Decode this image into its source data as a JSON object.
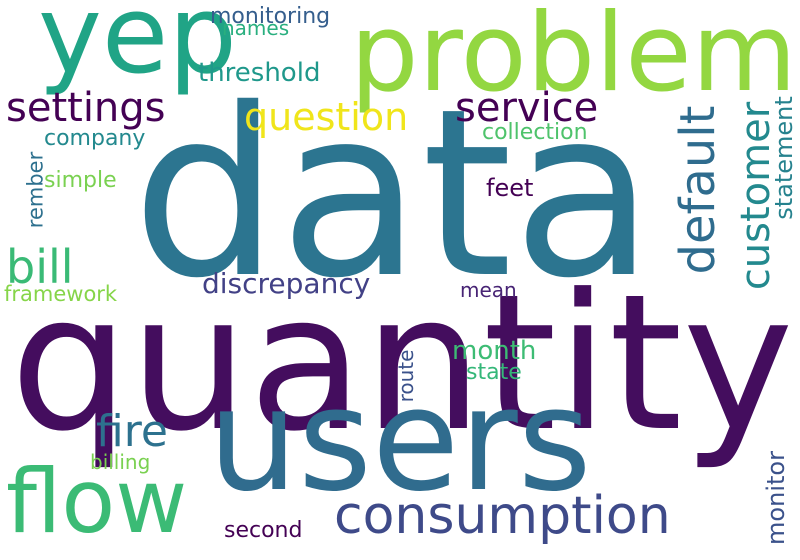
{
  "words": [
    {
      "id": "data",
      "text": "data",
      "color": "#2c7590"
    },
    {
      "id": "quantity",
      "text": "quantity",
      "color": "#440d5e"
    },
    {
      "id": "users",
      "text": "users",
      "color": "#306c8e"
    },
    {
      "id": "problem",
      "text": "problem",
      "color": "#93d741"
    },
    {
      "id": "yep",
      "text": "yep",
      "color": "#20a486"
    },
    {
      "id": "flow",
      "text": "flow",
      "color": "#3bbb75"
    },
    {
      "id": "consumption",
      "text": "consumption",
      "color": "#3e4a89"
    },
    {
      "id": "settings",
      "text": "settings",
      "color": "#440154"
    },
    {
      "id": "service",
      "text": "service",
      "color": "#440154"
    },
    {
      "id": "question",
      "text": "question",
      "color": "#f0e51b"
    },
    {
      "id": "default",
      "text": "default",
      "color": "#2f6c8e"
    },
    {
      "id": "customer",
      "text": "customer",
      "color": "#23898e"
    },
    {
      "id": "statement",
      "text": "statement",
      "color": "#26828e"
    },
    {
      "id": "bill",
      "text": "bill",
      "color": "#3aba76"
    },
    {
      "id": "fire",
      "text": "fire",
      "color": "#2d718e"
    },
    {
      "id": "discrepancy",
      "text": "discrepancy",
      "color": "#424186"
    },
    {
      "id": "threshold",
      "text": "threshold",
      "color": "#1f988b"
    },
    {
      "id": "monitoring",
      "text": "monitoring",
      "color": "#355e8d"
    },
    {
      "id": "names",
      "text": "names",
      "color": "#29af7f"
    },
    {
      "id": "company",
      "text": "company",
      "color": "#23898e"
    },
    {
      "id": "collection",
      "text": "collection",
      "color": "#4ec36b"
    },
    {
      "id": "simple",
      "text": "simple",
      "color": "#7ad151"
    },
    {
      "id": "rember",
      "text": "rember",
      "color": "#2d708e"
    },
    {
      "id": "feet",
      "text": "feet",
      "color": "#440154"
    },
    {
      "id": "framework",
      "text": "framework",
      "color": "#86d549"
    },
    {
      "id": "mean",
      "text": "mean",
      "color": "#482475"
    },
    {
      "id": "month",
      "text": "month",
      "color": "#3dbc74"
    },
    {
      "id": "state",
      "text": "state",
      "color": "#35b779"
    },
    {
      "id": "route",
      "text": "route",
      "color": "#3b528b"
    },
    {
      "id": "billing",
      "text": "billing",
      "color": "#7ad151"
    },
    {
      "id": "second",
      "text": "second",
      "color": "#440154"
    },
    {
      "id": "monitor",
      "text": "monitor",
      "color": "#3b528b"
    }
  ]
}
